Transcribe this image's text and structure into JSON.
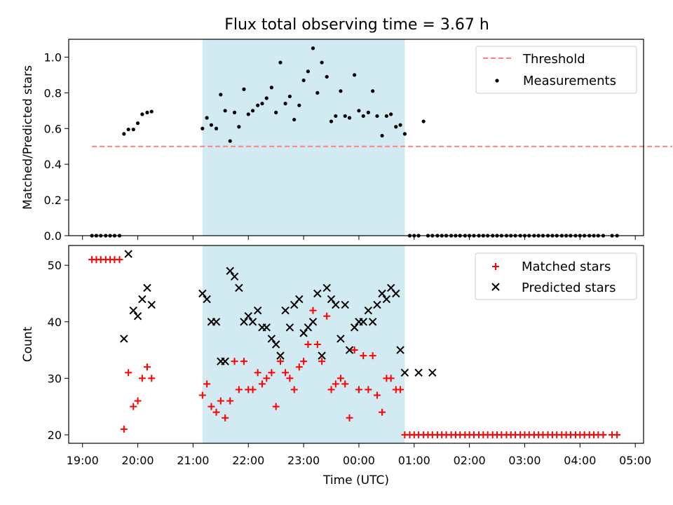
{
  "chart_data": [
    {
      "type": "scatter",
      "title": "Flux total observing time = 3.67 h",
      "ylabel": "Matched/Predicted stars",
      "xlabel": "",
      "xlim": [
        18.75,
        29.15
      ],
      "ylim": [
        0.0,
        1.1
      ],
      "yticks": [
        0.0,
        0.2,
        0.4,
        0.6,
        0.8,
        1.0
      ],
      "ytick_labels": [
        "0.0",
        "0.2",
        "0.4",
        "0.6",
        "0.8",
        "1.0"
      ],
      "shaded_interval": [
        21.17,
        24.83
      ],
      "shade_color": "#add8e6",
      "legend_position": "top-right",
      "threshold": {
        "name": "Threshold",
        "y": 0.5,
        "x_range": [
          19.17,
          29.67
        ],
        "color": "#ff7f7f",
        "style": "dashed"
      },
      "series": [
        {
          "name": "Measurements",
          "marker": "dot",
          "color": "#000000",
          "x": [
            19.17,
            19.25,
            19.33,
            19.42,
            19.5,
            19.58,
            19.67,
            19.75,
            19.83,
            19.92,
            20.0,
            20.08,
            20.17,
            20.25,
            21.17,
            21.25,
            21.33,
            21.42,
            21.5,
            21.58,
            21.67,
            21.75,
            21.83,
            21.92,
            22.0,
            22.08,
            22.17,
            22.25,
            22.33,
            22.42,
            22.5,
            22.58,
            22.67,
            22.75,
            22.83,
            22.92,
            23.0,
            23.08,
            23.17,
            23.25,
            23.33,
            23.42,
            23.5,
            23.58,
            23.67,
            23.75,
            23.83,
            23.92,
            24.0,
            24.08,
            24.17,
            24.25,
            24.33,
            24.42,
            24.5,
            24.58,
            24.67,
            24.75,
            24.83,
            24.92,
            25.0,
            25.08,
            25.17,
            25.25,
            25.33,
            25.42,
            25.5,
            25.58,
            25.67,
            25.75,
            25.83,
            25.92,
            26.0,
            26.08,
            26.17,
            26.25,
            26.33,
            26.42,
            26.5,
            26.58,
            26.67,
            26.75,
            26.83,
            26.92,
            27.0,
            27.08,
            27.17,
            27.25,
            27.33,
            27.42,
            27.5,
            27.58,
            27.67,
            27.75,
            27.83,
            27.92,
            28.0,
            28.08,
            28.17,
            28.25,
            28.33,
            28.42,
            28.58,
            28.67
          ],
          "y": [
            0.0,
            0.0,
            0.0,
            0.0,
            0.0,
            0.0,
            0.0,
            0.57,
            0.595,
            0.595,
            0.63,
            0.68,
            0.69,
            0.695,
            0.6,
            0.66,
            0.62,
            0.6,
            0.79,
            0.7,
            0.53,
            0.69,
            0.61,
            0.82,
            0.68,
            0.7,
            0.73,
            0.74,
            0.77,
            0.83,
            0.69,
            0.97,
            0.74,
            0.78,
            0.65,
            0.73,
            0.87,
            0.92,
            1.05,
            0.8,
            0.97,
            0.89,
            0.64,
            0.67,
            0.81,
            0.67,
            0.66,
            0.9,
            0.7,
            0.67,
            0.69,
            0.81,
            0.67,
            0.56,
            0.67,
            0.68,
            0.61,
            0.62,
            0.57,
            0.0,
            0.0,
            0.0,
            0.64,
            0.0,
            0.0,
            0.0,
            0.0,
            0.0,
            0.0,
            0.0,
            0.0,
            0.0,
            0.0,
            0.0,
            0.0,
            0.0,
            0.0,
            0.0,
            0.0,
            0.0,
            0.0,
            0.0,
            0.0,
            0.0,
            0.0,
            0.0,
            0.0,
            0.0,
            0.0,
            0.0,
            0.0,
            0.0,
            0.0,
            0.0,
            0.0,
            0.0,
            0.0,
            0.0,
            0.0,
            0.0,
            0.0,
            0.0,
            0.0,
            0.0
          ]
        }
      ]
    },
    {
      "type": "scatter",
      "title": "",
      "ylabel": "Count",
      "xlabel": "Time (UTC)",
      "xlim": [
        18.75,
        29.15
      ],
      "ylim": [
        18.5,
        53.5
      ],
      "yticks": [
        20,
        30,
        40,
        50
      ],
      "ytick_labels": [
        "20",
        "30",
        "40",
        "50"
      ],
      "xticks": [
        19,
        20,
        21,
        22,
        23,
        24,
        25,
        26,
        27,
        28,
        29
      ],
      "xtick_labels": [
        "19:00",
        "20:00",
        "21:00",
        "22:00",
        "23:00",
        "00:00",
        "01:00",
        "02:00",
        "03:00",
        "04:00",
        "05:00"
      ],
      "shaded_interval": [
        21.17,
        24.83
      ],
      "shade_color": "#add8e6",
      "legend_position": "top-right",
      "series": [
        {
          "name": "Matched stars",
          "marker": "plus",
          "color": "#ff0000",
          "x": [
            19.17,
            19.25,
            19.33,
            19.42,
            19.5,
            19.58,
            19.67,
            19.75,
            19.83,
            19.92,
            20.0,
            20.08,
            20.17,
            20.25,
            21.17,
            21.25,
            21.33,
            21.42,
            21.5,
            21.58,
            21.67,
            21.75,
            21.83,
            21.92,
            22.0,
            22.08,
            22.17,
            22.25,
            22.33,
            22.42,
            22.5,
            22.58,
            22.67,
            22.75,
            22.83,
            22.92,
            23.0,
            23.08,
            23.17,
            23.25,
            23.33,
            23.42,
            23.5,
            23.58,
            23.67,
            23.75,
            23.83,
            23.92,
            24.0,
            24.08,
            24.17,
            24.25,
            24.33,
            24.42,
            24.5,
            24.58,
            24.67,
            24.75,
            24.83,
            24.92,
            25.0,
            25.08,
            25.17,
            25.25,
            25.33,
            25.42,
            25.5,
            25.58,
            25.67,
            25.75,
            25.83,
            25.92,
            26.0,
            26.08,
            26.17,
            26.25,
            26.33,
            26.42,
            26.5,
            26.58,
            26.67,
            26.75,
            26.83,
            26.92,
            27.0,
            27.08,
            27.17,
            27.25,
            27.33,
            27.42,
            27.5,
            27.58,
            27.67,
            27.75,
            27.83,
            27.92,
            28.0,
            28.08,
            28.17,
            28.25,
            28.33,
            28.42,
            28.58,
            28.67
          ],
          "y": [
            51,
            51,
            51,
            51,
            51,
            51,
            51,
            21,
            31,
            25,
            26,
            30,
            32,
            30,
            27,
            29,
            25,
            24,
            26,
            23,
            26,
            33,
            28,
            33,
            28,
            28,
            31,
            29,
            30,
            31,
            25,
            33,
            31,
            30,
            28,
            32,
            33,
            36,
            42,
            36,
            33,
            41,
            28,
            29,
            30,
            29,
            23,
            35,
            28,
            34,
            28,
            34,
            27,
            24,
            30,
            30,
            28,
            28,
            20,
            20,
            20,
            20,
            20,
            20,
            20,
            20,
            20,
            20,
            20,
            20,
            20,
            20,
            20,
            20,
            20,
            20,
            20,
            20,
            20,
            20,
            20,
            20,
            20,
            20,
            20,
            20,
            20,
            20,
            20,
            20,
            20,
            20,
            20,
            20,
            20,
            20,
            20,
            20,
            20,
            20,
            20,
            20,
            20,
            20
          ]
        },
        {
          "name": "Predicted stars",
          "marker": "x",
          "color": "#000000",
          "x": [
            19.75,
            19.83,
            19.92,
            20.0,
            20.08,
            20.17,
            20.25,
            21.17,
            21.25,
            21.33,
            21.42,
            21.5,
            21.58,
            21.67,
            21.75,
            21.83,
            21.92,
            22.0,
            22.08,
            22.17,
            22.25,
            22.33,
            22.42,
            22.5,
            22.58,
            22.67,
            22.75,
            22.83,
            22.92,
            23.0,
            23.08,
            23.17,
            23.25,
            23.33,
            23.42,
            23.5,
            23.58,
            23.67,
            23.75,
            23.83,
            23.92,
            24.0,
            24.08,
            24.17,
            24.25,
            24.33,
            24.42,
            24.5,
            24.58,
            24.67,
            24.75,
            24.83,
            25.08,
            25.33
          ],
          "y": [
            37,
            52,
            42,
            41,
            44,
            46,
            43,
            45,
            44,
            40,
            40,
            33,
            33,
            49,
            48,
            46,
            40,
            41,
            40,
            42,
            39,
            39,
            37,
            36,
            34,
            42,
            39,
            43,
            44,
            38,
            39,
            40,
            45,
            34,
            46,
            44,
            43,
            37,
            43,
            35,
            39,
            40,
            40,
            42,
            40,
            43,
            45,
            44,
            46,
            45,
            35,
            31,
            31,
            31
          ]
        }
      ]
    }
  ]
}
